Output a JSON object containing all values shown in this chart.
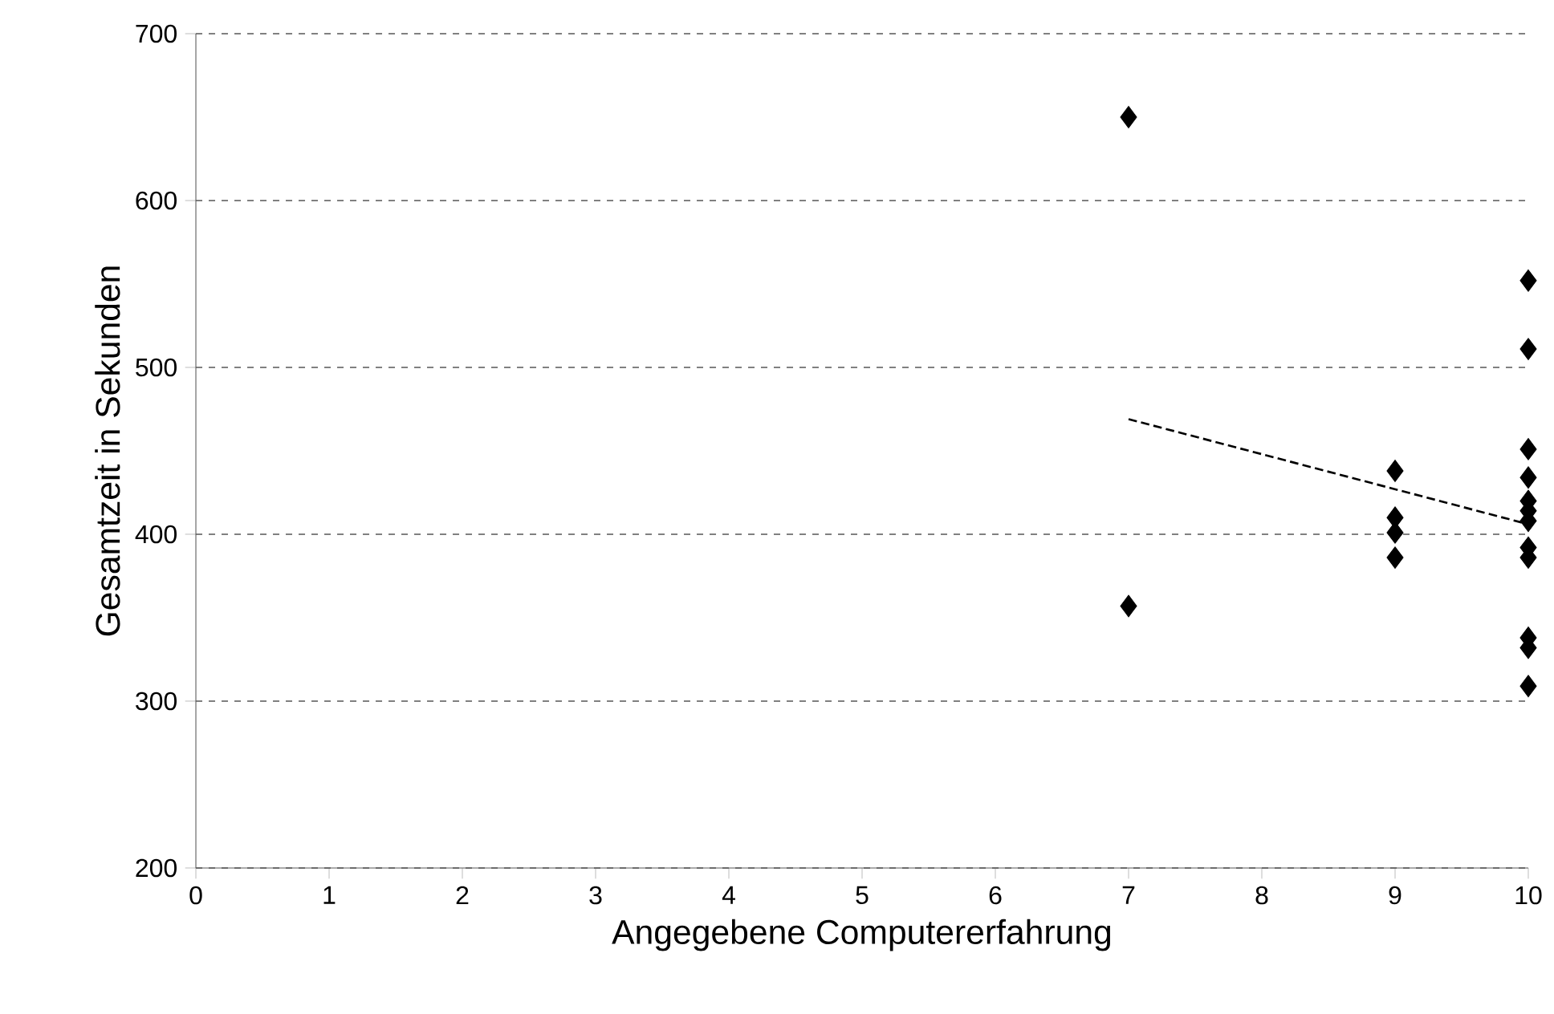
{
  "chart_data": {
    "type": "scatter",
    "xlabel": "Angegebene Computererfahrung",
    "ylabel": "Gesamtzeit in  Sekunden",
    "xlim": [
      0,
      10
    ],
    "ylim": [
      200,
      700
    ],
    "xticks": [
      0,
      1,
      2,
      3,
      4,
      5,
      6,
      7,
      8,
      9,
      10
    ],
    "yticks": [
      200,
      300,
      400,
      500,
      600,
      700
    ],
    "grid": "y",
    "series": [
      {
        "color": "#000000",
        "marker": "diamond",
        "x": [
          7,
          7,
          9,
          9,
          9,
          9,
          10,
          10,
          10,
          10,
          10,
          10,
          10,
          10,
          10,
          10,
          10,
          10
        ],
        "values": [
          650,
          357,
          438,
          410,
          401,
          386,
          552,
          511,
          451,
          434,
          420,
          414,
          408,
          392,
          386,
          338,
          332,
          309
        ]
      },
      {
        "type": "line",
        "color": "#000000",
        "line_style": "dashed",
        "marker": "none",
        "x": [
          7,
          10
        ],
        "values": [
          469,
          406
        ]
      }
    ]
  }
}
